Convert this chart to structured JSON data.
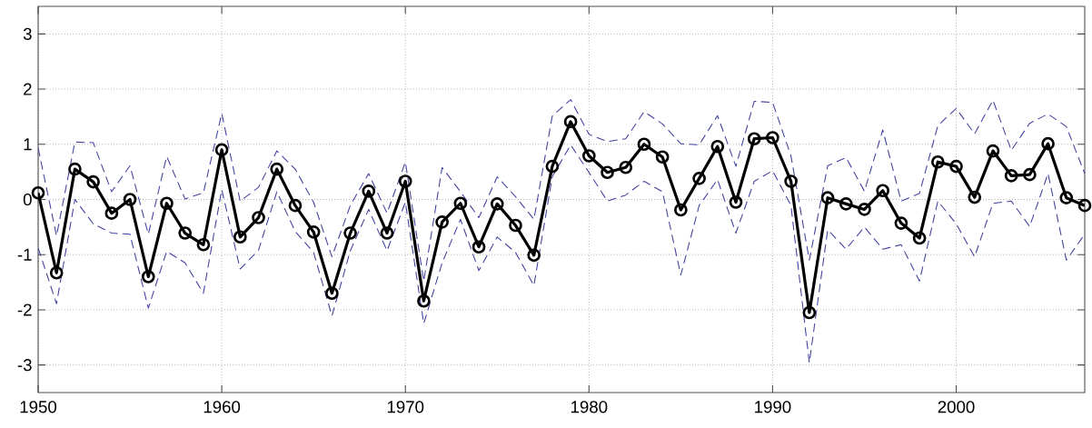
{
  "chart_data": {
    "type": "line",
    "x": [
      1950,
      1951,
      1952,
      1953,
      1954,
      1955,
      1956,
      1957,
      1958,
      1959,
      1960,
      1961,
      1962,
      1963,
      1964,
      1965,
      1966,
      1967,
      1968,
      1969,
      1970,
      1971,
      1972,
      1973,
      1974,
      1975,
      1976,
      1977,
      1978,
      1979,
      1980,
      1981,
      1982,
      1983,
      1984,
      1985,
      1986,
      1987,
      1988,
      1989,
      1990,
      1991,
      1992,
      1993,
      1994,
      1995,
      1996,
      1997,
      1998,
      1999,
      2000,
      2001,
      2002,
      2003,
      2004,
      2005,
      2006,
      2007
    ],
    "series": [
      {
        "color": "#4040a0",
        "line_style": "dashed",
        "marker": "none",
        "values": [
          0.93,
          -0.66,
          1.04,
          1.03,
          0.14,
          0.61,
          -0.63,
          0.78,
          0.01,
          0.12,
          1.56,
          -0.03,
          0.22,
          0.88,
          0.55,
          -0.05,
          -1.04,
          -0.11,
          0.47,
          -0.25,
          0.68,
          -1.48,
          0.58,
          0.14,
          -0.33,
          0.41,
          0.05,
          -0.36,
          1.51,
          1.81,
          1.18,
          1.05,
          1.1,
          1.59,
          1.37,
          1.01,
          0.99,
          1.52,
          0.6,
          1.78,
          1.76,
          0.79,
          -1.1,
          0.61,
          0.76,
          0.15,
          1.26,
          -0.03,
          0.11,
          1.34,
          1.65,
          1.19,
          1.8,
          0.89,
          1.38,
          1.55,
          1.32,
          0.47
        ]
      },
      {
        "color": "#4040a0",
        "line_style": "dashed",
        "marker": "none",
        "values": [
          -0.88,
          -1.89,
          0.0,
          -0.44,
          -0.61,
          -0.63,
          -1.97,
          -0.94,
          -1.15,
          -1.7,
          0.18,
          -1.26,
          -0.92,
          0.14,
          -0.58,
          -0.96,
          -2.11,
          -0.93,
          -0.18,
          -0.93,
          -0.05,
          -2.25,
          -1.15,
          -0.36,
          -1.29,
          -0.68,
          -0.96,
          -1.56,
          0.41,
          0.99,
          0.49,
          -0.03,
          0.08,
          0.33,
          0.14,
          -1.37,
          -0.11,
          0.36,
          -0.61,
          0.33,
          0.52,
          -0.11,
          -2.96,
          -0.55,
          -0.9,
          -0.5,
          -0.9,
          -0.82,
          -1.48,
          -0.03,
          -0.44,
          -1.04,
          -0.07,
          -0.03,
          -0.49,
          0.47,
          -1.1,
          -0.63
        ]
      },
      {
        "color": "#000000",
        "line_style": "solid",
        "marker": "circle",
        "values": [
          0.12,
          -1.33,
          0.55,
          0.32,
          -0.25,
          0.0,
          -1.4,
          -0.07,
          -0.61,
          -0.82,
          0.9,
          -0.68,
          -0.33,
          0.55,
          -0.11,
          -0.59,
          -1.7,
          -0.61,
          0.15,
          -0.61,
          0.33,
          -1.84,
          -0.41,
          -0.07,
          -0.86,
          -0.08,
          -0.47,
          -1.01,
          0.6,
          1.41,
          0.79,
          0.49,
          0.58,
          1.0,
          0.77,
          -0.19,
          0.38,
          0.96,
          -0.05,
          1.1,
          1.12,
          0.33,
          -2.05,
          0.03,
          -0.08,
          -0.18,
          0.16,
          -0.43,
          -0.7,
          0.68,
          0.6,
          0.04,
          0.88,
          0.43,
          0.45,
          1.01,
          0.03,
          -0.11
        ]
      }
    ],
    "xlim": [
      1950,
      2007
    ],
    "ylim": [
      -3.5,
      3.5
    ],
    "xticks": [
      1950,
      1960,
      1970,
      1980,
      1990,
      2000
    ],
    "yticks": [
      -3,
      -2,
      -1,
      0,
      1,
      2,
      3
    ],
    "grid": true
  }
}
